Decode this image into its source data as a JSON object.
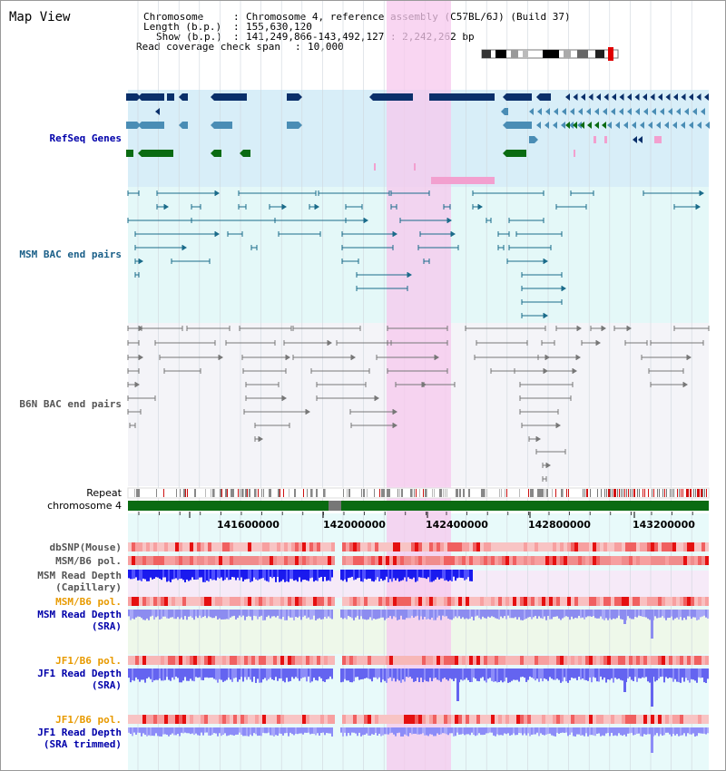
{
  "window_title": "Map View",
  "header": {
    "chromosome_key": "Chromosome",
    "chromosome_val": "Chromosome 4, reference assembly (C57BL/6J) (Build 37)",
    "length_key": "Length (b.p.)",
    "length_val": "155,630,120",
    "show_key": "Show (b.p.)",
    "show_val": "141,249,866-143,492,127 : 2,242,262 bp",
    "span_key": "Read coverage check span",
    "span_val": "10,000"
  },
  "tracks": {
    "refseq": "RefSeq Genes",
    "msm_bac": "MSM BAC end pairs",
    "b6n_bac": "B6N BAC end pairs",
    "repeat": "Repeat",
    "chromosome": "chromosome 4",
    "dbsnp": "dbSNP(Mouse)",
    "msm_b6_pol": "MSM/B6 pol.",
    "msm_depth_cap_1": "MSM Read Depth",
    "msm_depth_cap_2": "(Capillary)",
    "msm_b6_pol_sra": "MSM/B6 pol.",
    "msm_depth_sra_1": "MSM Read Depth",
    "msm_depth_sra_2": "(SRA)",
    "jf1_b6_pol_1": "JF1/B6 pol.",
    "jf1_depth_sra_1": "JF1 Read Depth",
    "jf1_depth_sra_2": "(SRA)",
    "jf1_b6_pol_2": "JF1/B6 pol.",
    "jf1_depth_trim_1": "JF1 Read Depth",
    "jf1_depth_trim_2": "(SRA trimmed)"
  },
  "axis": {
    "ticks": [
      "141600000",
      "142000000",
      "142400000",
      "142800000",
      "143200000"
    ]
  },
  "colors": {
    "refseq_bg": "#d8eef8",
    "msm_bg": "#e4f8f8",
    "b6n_bg": "#f4f4f8",
    "highlight": "#f8d8f0",
    "navy": "#0a2f6a",
    "teal": "#4a8db5",
    "green": "#0a6b12",
    "pink": "#f2a0cf",
    "msm_line": "#1a6b8a",
    "b6n_line": "#777777",
    "chrom_green": "#0a6b12",
    "label_blue": "#0000aa",
    "label_msm": "#1a5f88",
    "label_gray": "#555555",
    "label_orange": "#e89a00"
  }
}
